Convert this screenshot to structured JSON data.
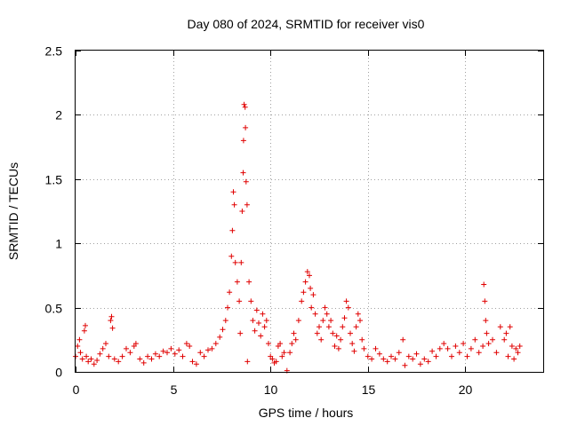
{
  "chart_data": {
    "type": "scatter",
    "title": "Day 080 of 2024, SRMTID for receiver vis0",
    "xlabel": "GPS time / hours",
    "ylabel": "SRMTID / TECUs",
    "xlim": [
      0,
      24
    ],
    "ylim": [
      0,
      2.5
    ],
    "xticks": [
      0,
      5,
      10,
      15,
      20
    ],
    "xtick_labels": [
      "0",
      "5",
      "10",
      "15",
      "20"
    ],
    "yticks": [
      0,
      0.5,
      1,
      1.5,
      2,
      2.5
    ],
    "ytick_labels": [
      "0",
      "0.5",
      "1",
      "1.5",
      "2",
      "2.5"
    ],
    "grid": true,
    "marker": "+",
    "colors": {
      "series": "#e00000",
      "grid": "#a0a0a0",
      "axis": "#000000"
    },
    "series": [
      {
        "name": "vis0",
        "points": [
          [
            0.0,
            0.12
          ],
          [
            0.1,
            0.2
          ],
          [
            0.2,
            0.25
          ],
          [
            0.25,
            0.15
          ],
          [
            0.35,
            0.1
          ],
          [
            0.45,
            0.32
          ],
          [
            0.5,
            0.36
          ],
          [
            0.55,
            0.12
          ],
          [
            0.65,
            0.08
          ],
          [
            0.8,
            0.1
          ],
          [
            0.95,
            0.06
          ],
          [
            1.1,
            0.09
          ],
          [
            1.25,
            0.14
          ],
          [
            1.4,
            0.18
          ],
          [
            1.55,
            0.22
          ],
          [
            1.7,
            0.12
          ],
          [
            1.8,
            0.4
          ],
          [
            1.85,
            0.43
          ],
          [
            1.9,
            0.34
          ],
          [
            2.0,
            0.1
          ],
          [
            2.2,
            0.08
          ],
          [
            2.4,
            0.12
          ],
          [
            2.6,
            0.18
          ],
          [
            2.8,
            0.15
          ],
          [
            3.0,
            0.2
          ],
          [
            3.1,
            0.22
          ],
          [
            3.3,
            0.1
          ],
          [
            3.5,
            0.07
          ],
          [
            3.7,
            0.12
          ],
          [
            3.9,
            0.1
          ],
          [
            4.1,
            0.14
          ],
          [
            4.3,
            0.12
          ],
          [
            4.5,
            0.16
          ],
          [
            4.7,
            0.15
          ],
          [
            4.9,
            0.18
          ],
          [
            5.1,
            0.14
          ],
          [
            5.3,
            0.17
          ],
          [
            5.5,
            0.12
          ],
          [
            5.7,
            0.22
          ],
          [
            5.85,
            0.2
          ],
          [
            6.0,
            0.08
          ],
          [
            6.2,
            0.06
          ],
          [
            6.4,
            0.15
          ],
          [
            6.6,
            0.12
          ],
          [
            6.8,
            0.17
          ],
          [
            7.0,
            0.18
          ],
          [
            7.2,
            0.22
          ],
          [
            7.4,
            0.27
          ],
          [
            7.55,
            0.33
          ],
          [
            7.7,
            0.4
          ],
          [
            7.8,
            0.5
          ],
          [
            7.9,
            0.62
          ],
          [
            8.0,
            0.9
          ],
          [
            8.05,
            1.1
          ],
          [
            8.1,
            1.4
          ],
          [
            8.15,
            1.3
          ],
          [
            8.2,
            0.85
          ],
          [
            8.3,
            0.7
          ],
          [
            8.4,
            0.55
          ],
          [
            8.45,
            0.3
          ],
          [
            8.5,
            0.85
          ],
          [
            8.55,
            1.25
          ],
          [
            8.6,
            1.55
          ],
          [
            8.62,
            1.8
          ],
          [
            8.65,
            2.08
          ],
          [
            8.7,
            2.06
          ],
          [
            8.72,
            1.9
          ],
          [
            8.75,
            1.48
          ],
          [
            8.8,
            1.3
          ],
          [
            8.82,
            0.08
          ],
          [
            8.9,
            0.7
          ],
          [
            9.0,
            0.55
          ],
          [
            9.1,
            0.4
          ],
          [
            9.2,
            0.32
          ],
          [
            9.3,
            0.48
          ],
          [
            9.4,
            0.38
          ],
          [
            9.5,
            0.28
          ],
          [
            9.6,
            0.45
          ],
          [
            9.7,
            0.35
          ],
          [
            9.8,
            0.4
          ],
          [
            9.9,
            0.22
          ],
          [
            10.0,
            0.12
          ],
          [
            10.1,
            0.1
          ],
          [
            10.2,
            0.07
          ],
          [
            10.3,
            0.08
          ],
          [
            10.4,
            0.2
          ],
          [
            10.5,
            0.22
          ],
          [
            10.6,
            0.12
          ],
          [
            10.7,
            0.15
          ],
          [
            10.85,
            0.01
          ],
          [
            11.0,
            0.15
          ],
          [
            11.1,
            0.22
          ],
          [
            11.2,
            0.3
          ],
          [
            11.3,
            0.25
          ],
          [
            11.45,
            0.4
          ],
          [
            11.6,
            0.55
          ],
          [
            11.7,
            0.62
          ],
          [
            11.8,
            0.7
          ],
          [
            11.9,
            0.78
          ],
          [
            12.0,
            0.75
          ],
          [
            12.05,
            0.65
          ],
          [
            12.1,
            0.5
          ],
          [
            12.2,
            0.6
          ],
          [
            12.3,
            0.45
          ],
          [
            12.4,
            0.3
          ],
          [
            12.5,
            0.35
          ],
          [
            12.6,
            0.25
          ],
          [
            12.7,
            0.4
          ],
          [
            12.8,
            0.5
          ],
          [
            12.9,
            0.45
          ],
          [
            13.0,
            0.35
          ],
          [
            13.1,
            0.4
          ],
          [
            13.2,
            0.3
          ],
          [
            13.3,
            0.2
          ],
          [
            13.4,
            0.28
          ],
          [
            13.5,
            0.18
          ],
          [
            13.6,
            0.25
          ],
          [
            13.7,
            0.35
          ],
          [
            13.8,
            0.42
          ],
          [
            13.9,
            0.55
          ],
          [
            14.0,
            0.5
          ],
          [
            14.1,
            0.3
          ],
          [
            14.2,
            0.22
          ],
          [
            14.3,
            0.16
          ],
          [
            14.4,
            0.35
          ],
          [
            14.5,
            0.45
          ],
          [
            14.6,
            0.4
          ],
          [
            14.7,
            0.25
          ],
          [
            14.8,
            0.18
          ],
          [
            15.0,
            0.12
          ],
          [
            15.2,
            0.1
          ],
          [
            15.4,
            0.18
          ],
          [
            15.6,
            0.14
          ],
          [
            15.8,
            0.1
          ],
          [
            16.0,
            0.08
          ],
          [
            16.2,
            0.12
          ],
          [
            16.4,
            0.1
          ],
          [
            16.6,
            0.15
          ],
          [
            16.8,
            0.25
          ],
          [
            16.9,
            0.05
          ],
          [
            17.1,
            0.12
          ],
          [
            17.3,
            0.1
          ],
          [
            17.5,
            0.14
          ],
          [
            17.7,
            0.06
          ],
          [
            17.9,
            0.1
          ],
          [
            18.1,
            0.08
          ],
          [
            18.3,
            0.16
          ],
          [
            18.5,
            0.12
          ],
          [
            18.7,
            0.18
          ],
          [
            18.9,
            0.22
          ],
          [
            19.1,
            0.18
          ],
          [
            19.3,
            0.12
          ],
          [
            19.5,
            0.2
          ],
          [
            19.7,
            0.15
          ],
          [
            19.9,
            0.22
          ],
          [
            20.1,
            0.12
          ],
          [
            20.3,
            0.18
          ],
          [
            20.5,
            0.25
          ],
          [
            20.7,
            0.15
          ],
          [
            20.9,
            0.2
          ],
          [
            20.95,
            0.68
          ],
          [
            21.0,
            0.55
          ],
          [
            21.05,
            0.4
          ],
          [
            21.1,
            0.3
          ],
          [
            21.2,
            0.22
          ],
          [
            21.4,
            0.25
          ],
          [
            21.6,
            0.15
          ],
          [
            21.8,
            0.35
          ],
          [
            22.0,
            0.25
          ],
          [
            22.1,
            0.3
          ],
          [
            22.2,
            0.12
          ],
          [
            22.3,
            0.35
          ],
          [
            22.4,
            0.2
          ],
          [
            22.5,
            0.1
          ],
          [
            22.6,
            0.18
          ],
          [
            22.7,
            0.15
          ],
          [
            22.8,
            0.2
          ]
        ]
      }
    ]
  }
}
